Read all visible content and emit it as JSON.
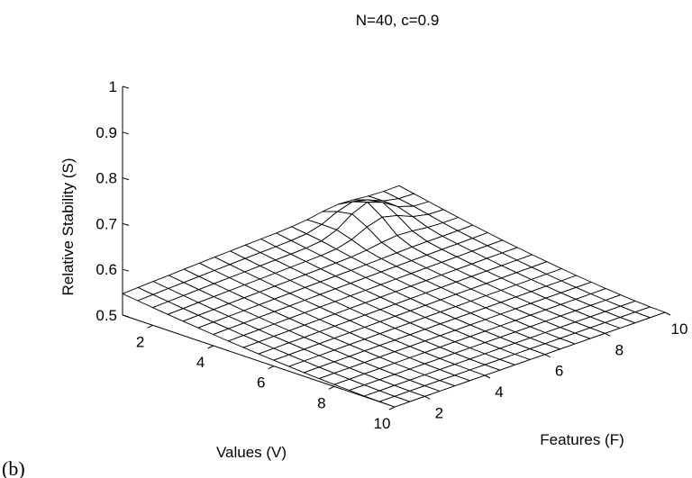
{
  "panel_label": "(b)",
  "chart_data": {
    "type": "surface",
    "title": "N=40, c=0.9",
    "xlabel": "Values (V)",
    "ylabel": "Features (F)",
    "zlabel": "Relative Stability (S)",
    "x_range": [
      1,
      10
    ],
    "y_range": [
      1,
      10
    ],
    "zlim": [
      0.5,
      1
    ],
    "x_ticks": [
      2,
      4,
      6,
      8,
      10
    ],
    "y_ticks": [
      2,
      4,
      6,
      8,
      10
    ],
    "z_ticks": [
      "0.5",
      "0.6",
      "0.7",
      "0.8",
      "0.9",
      "1"
    ],
    "grid_size": [
      19,
      19
    ],
    "surface_shape": "mostly flat near S=0.5 rising gently to a ridge of about S=0.6 along the low-Values edge, with a small bump near Values=2, Features=8",
    "colors": {
      "mesh_fill": "#ffffff",
      "mesh_line": "#000000"
    }
  }
}
